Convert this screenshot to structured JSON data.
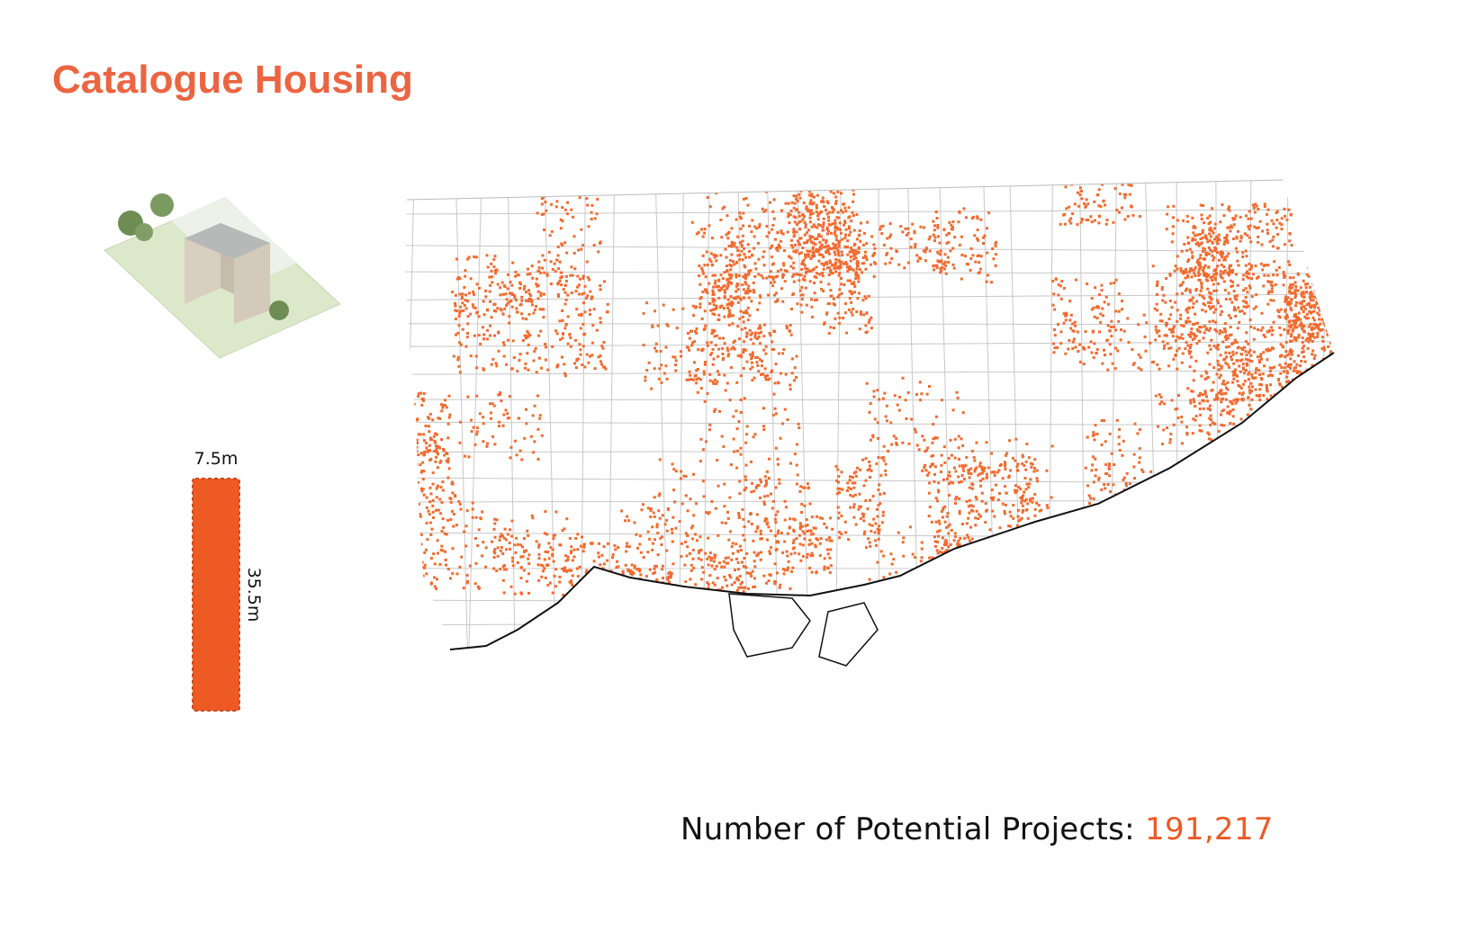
{
  "header": {
    "title": "Catalogue Housing"
  },
  "lot": {
    "width_label": "7.5m",
    "depth_label": "35.5m"
  },
  "summary": {
    "label": "Number of Potential Projects:",
    "value": "191,217"
  }
}
